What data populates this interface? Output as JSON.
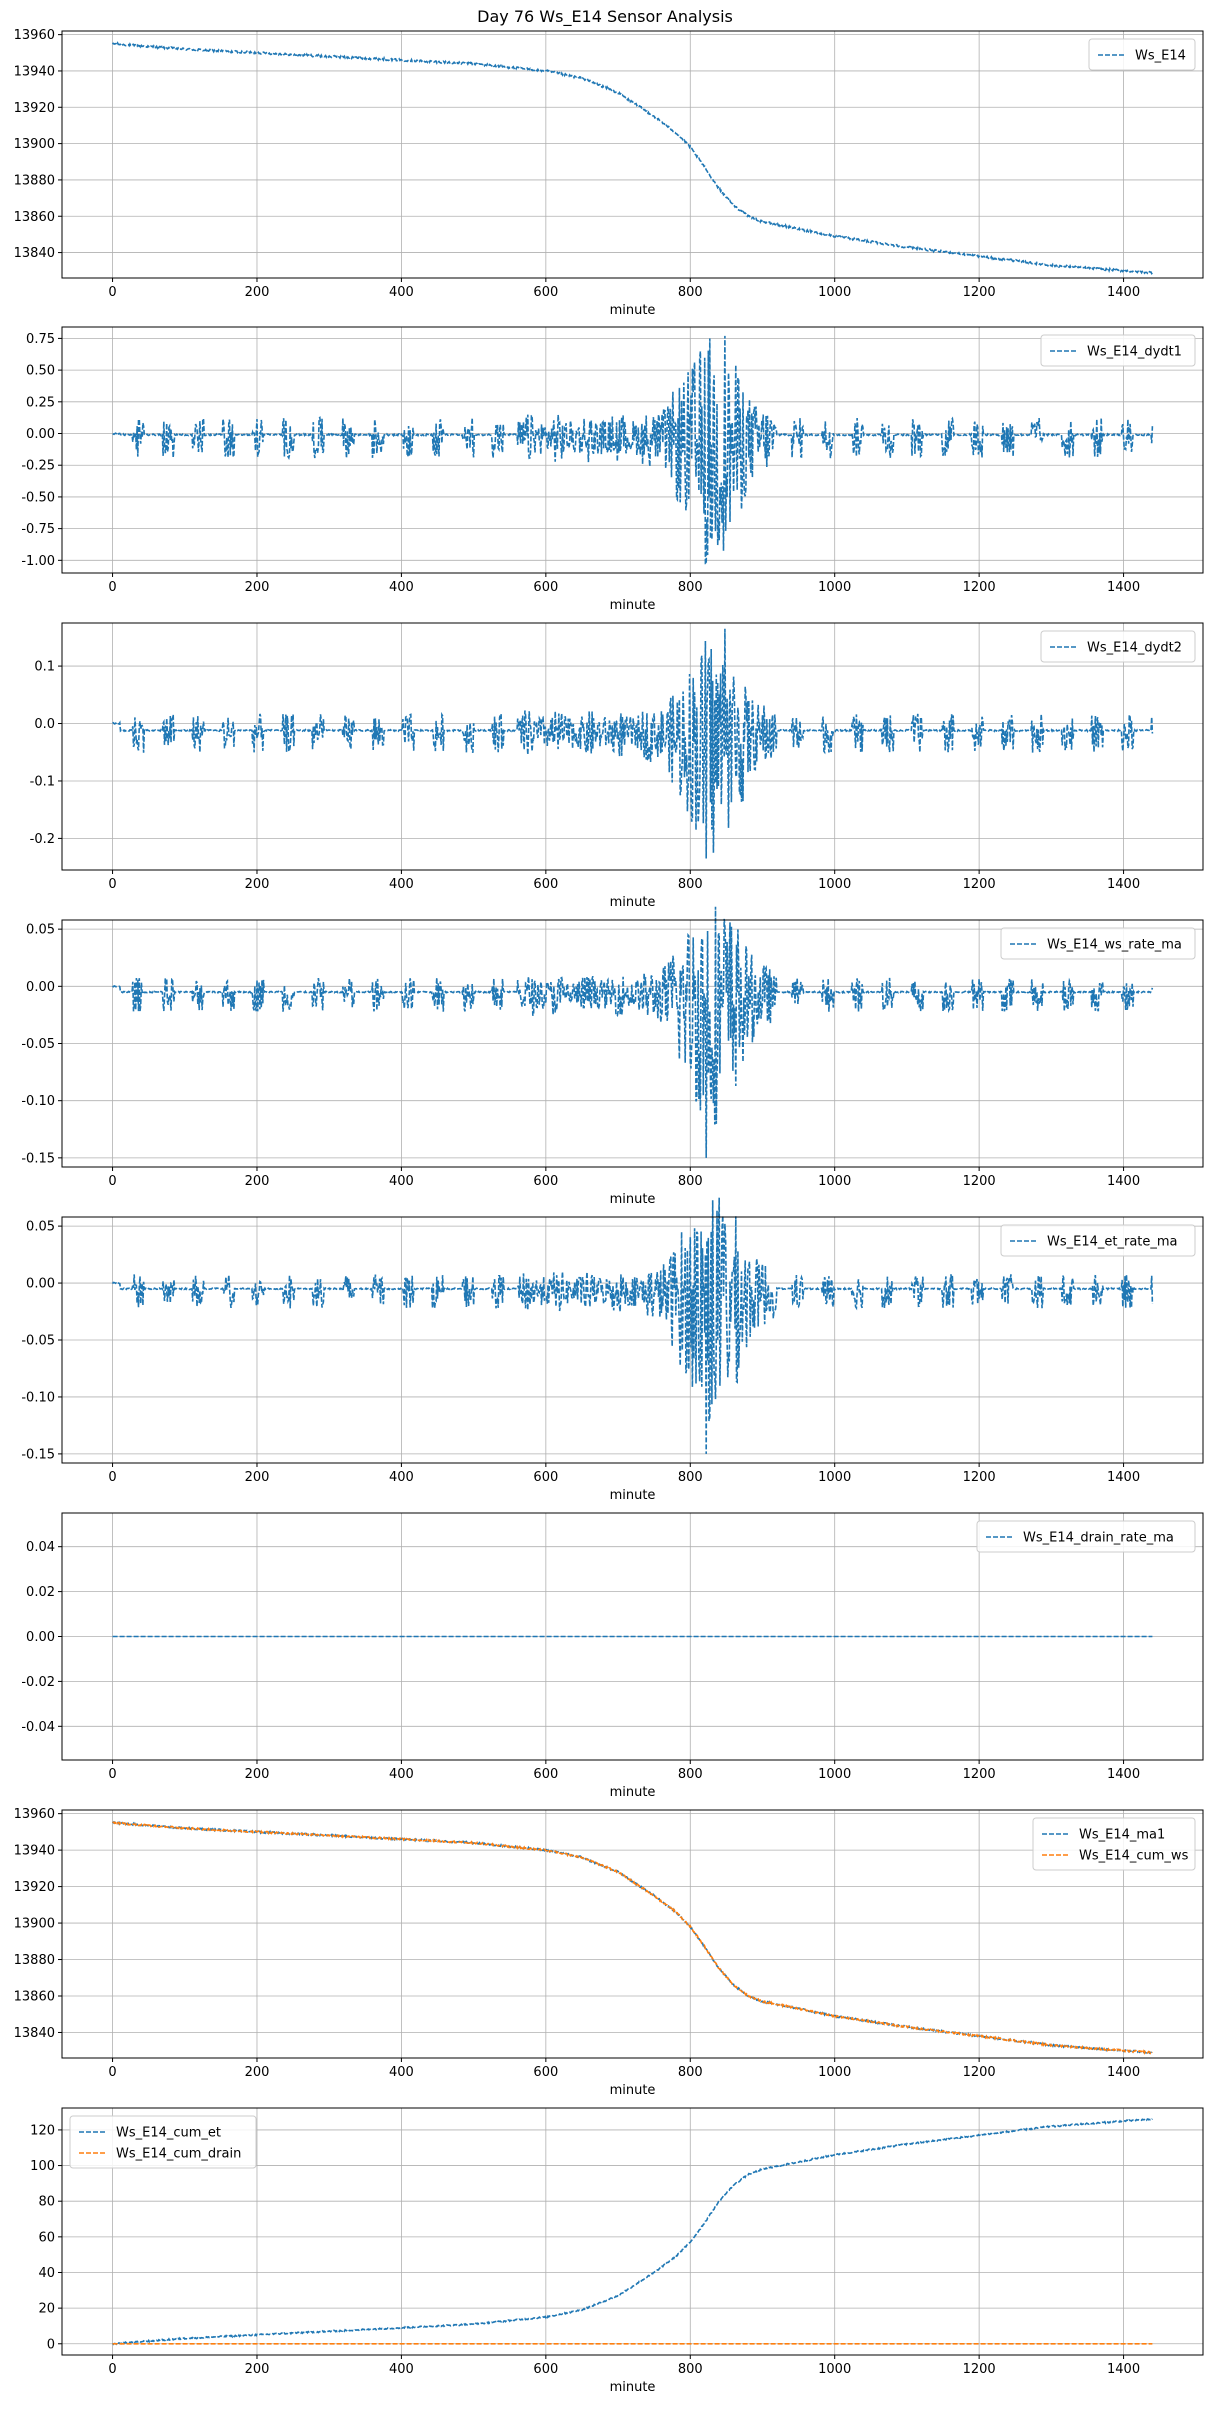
{
  "figure": {
    "title": "Day 76 Ws_E14 Sensor Analysis"
  },
  "colors": {
    "blue": "#1f77b4",
    "orange": "#ff7f0e",
    "grid": "#b0b0b0",
    "axis": "#000000"
  },
  "chart_data": [
    {
      "type": "line",
      "id": "ws",
      "title": "",
      "xlabel": "minute",
      "ylabel": "",
      "xlim": [
        -70,
        1510
      ],
      "ylim": [
        13826,
        13962
      ],
      "xticks": [
        0,
        200,
        400,
        600,
        800,
        1000,
        1200,
        1400
      ],
      "yticks": [
        13840,
        13860,
        13880,
        13900,
        13920,
        13940,
        13960
      ],
      "ytick_labels": [
        "13840",
        "13860",
        "13880",
        "13900",
        "13920",
        "13940",
        "13960"
      ],
      "legend": "upper right",
      "grid": true,
      "series": [
        {
          "name": "Ws_E14",
          "color": "blue",
          "style": "dashed",
          "kind": "smooth",
          "x": [
            0,
            100,
            200,
            300,
            400,
            500,
            600,
            650,
            700,
            750,
            780,
            800,
            820,
            840,
            860,
            880,
            900,
            950,
            1000,
            1100,
            1200,
            1300,
            1400,
            1440
          ],
          "y": [
            13955,
            13952,
            13950,
            13948,
            13946,
            13944,
            13940,
            13936,
            13928,
            13915,
            13906,
            13898,
            13887,
            13875,
            13866,
            13860,
            13857,
            13853,
            13849,
            13843,
            13838,
            13833,
            13830,
            13829
          ],
          "noise": 0.6
        }
      ]
    },
    {
      "type": "line",
      "id": "dydt1",
      "title": "",
      "xlabel": "minute",
      "ylabel": "",
      "xlim": [
        -70,
        1510
      ],
      "ylim": [
        -1.1,
        0.84
      ],
      "xticks": [
        0,
        200,
        400,
        600,
        800,
        1000,
        1200,
        1400
      ],
      "yticks": [
        -1.0,
        -0.75,
        -0.5,
        -0.25,
        0.0,
        0.25,
        0.5,
        0.75
      ],
      "ytick_labels": [
        "-1.00",
        "-0.75",
        "-0.50",
        "-0.25",
        "0.00",
        "0.25",
        "0.50",
        "0.75"
      ],
      "legend": "upper right",
      "grid": true,
      "series": [
        {
          "name": "Ws_E14_dydt1",
          "color": "blue",
          "style": "dashed",
          "kind": "osc",
          "burst_start": 28,
          "burst_period": 41.5,
          "burst_width": 16,
          "base_amp": 0.16,
          "base_bias": -0.01,
          "peak_amp": 0.75,
          "peak_center": 830,
          "peak_width": 48,
          "min_value": -1.03,
          "max_value": 0.77
        }
      ]
    },
    {
      "type": "line",
      "id": "dydt2",
      "title": "",
      "xlabel": "minute",
      "ylabel": "",
      "xlim": [
        -70,
        1510
      ],
      "ylim": [
        -0.255,
        0.175
      ],
      "xticks": [
        0,
        200,
        400,
        600,
        800,
        1000,
        1200,
        1400
      ],
      "yticks": [
        -0.2,
        -0.1,
        0.0,
        0.1
      ],
      "ytick_labels": [
        "-0.2",
        "-0.1",
        "0.0",
        "0.1"
      ],
      "legend": "upper right",
      "grid": true,
      "series": [
        {
          "name": "Ws_E14_dydt2",
          "color": "blue",
          "style": "dashed",
          "kind": "osc",
          "burst_start": 28,
          "burst_period": 41.5,
          "burst_width": 16,
          "base_amp": 0.034,
          "base_bias": -0.012,
          "peak_amp": 0.16,
          "peak_center": 830,
          "peak_width": 48,
          "min_value": -0.235,
          "max_value": 0.165
        }
      ]
    },
    {
      "type": "line",
      "id": "ws_rate",
      "title": "",
      "xlabel": "minute",
      "ylabel": "",
      "xlim": [
        -70,
        1510
      ],
      "ylim": [
        -0.158,
        0.058
      ],
      "xticks": [
        0,
        200,
        400,
        600,
        800,
        1000,
        1200,
        1400
      ],
      "yticks": [
        -0.15,
        -0.1,
        -0.05,
        0.0,
        0.05
      ],
      "ytick_labels": [
        "-0.15",
        "-0.10",
        "-0.05",
        "0.00",
        "0.05"
      ],
      "legend": "upper right",
      "grid": true,
      "series": [
        {
          "name": "Ws_E14_ws_rate_ma",
          "color": "blue",
          "style": "dashed",
          "kind": "osc",
          "burst_start": 28,
          "burst_period": 41.5,
          "burst_width": 16,
          "base_amp": 0.015,
          "base_bias": -0.005,
          "peak_amp": 0.09,
          "peak_center": 830,
          "peak_width": 50,
          "min_value": -0.15,
          "max_value": 0.052
        }
      ]
    },
    {
      "type": "line",
      "id": "et_rate",
      "title": "",
      "xlabel": "minute",
      "ylabel": "",
      "xlim": [
        -70,
        1510
      ],
      "ylim": [
        -0.158,
        0.058
      ],
      "xticks": [
        0,
        200,
        400,
        600,
        800,
        1000,
        1200,
        1400
      ],
      "yticks": [
        -0.15,
        -0.1,
        -0.05,
        0.0,
        0.05
      ],
      "ytick_labels": [
        "-0.15",
        "-0.10",
        "-0.05",
        "0.00",
        "0.05"
      ],
      "legend": "upper right",
      "grid": true,
      "series": [
        {
          "name": "Ws_E14_et_rate_ma",
          "color": "blue",
          "style": "dashed",
          "kind": "osc",
          "burst_start": 28,
          "burst_period": 41.5,
          "burst_width": 16,
          "base_amp": 0.015,
          "base_bias": -0.005,
          "peak_amp": 0.09,
          "peak_center": 830,
          "peak_width": 50,
          "min_value": -0.15,
          "max_value": 0.052
        }
      ]
    },
    {
      "type": "line",
      "id": "drain_rate",
      "title": "",
      "xlabel": "minute",
      "ylabel": "",
      "xlim": [
        -70,
        1510
      ],
      "ylim": [
        -0.055,
        0.055
      ],
      "xticks": [
        0,
        200,
        400,
        600,
        800,
        1000,
        1200,
        1400
      ],
      "yticks": [
        -0.04,
        -0.02,
        0.0,
        0.02,
        0.04
      ],
      "ytick_labels": [
        "-0.04",
        "-0.02",
        "0.00",
        "0.02",
        "0.04"
      ],
      "legend": "upper right",
      "grid": true,
      "series": [
        {
          "name": "Ws_E14_drain_rate_ma",
          "color": "blue",
          "style": "dashed",
          "kind": "smooth",
          "x": [
            0,
            1440
          ],
          "y": [
            0,
            0
          ],
          "noise": 0
        }
      ]
    },
    {
      "type": "line",
      "id": "ma1_cumws",
      "title": "",
      "xlabel": "minute",
      "ylabel": "",
      "xlim": [
        -70,
        1510
      ],
      "ylim": [
        13826,
        13962
      ],
      "xticks": [
        0,
        200,
        400,
        600,
        800,
        1000,
        1200,
        1400
      ],
      "yticks": [
        13840,
        13860,
        13880,
        13900,
        13920,
        13940,
        13960
      ],
      "ytick_labels": [
        "13840",
        "13860",
        "13880",
        "13900",
        "13920",
        "13940",
        "13960"
      ],
      "legend": "upper right",
      "grid": true,
      "series": [
        {
          "name": "Ws_E14_ma1",
          "color": "blue",
          "style": "dashed",
          "kind": "smooth",
          "x": [
            0,
            100,
            200,
            300,
            400,
            500,
            600,
            650,
            700,
            750,
            780,
            800,
            820,
            840,
            860,
            880,
            900,
            950,
            1000,
            1100,
            1200,
            1300,
            1400,
            1440
          ],
          "y": [
            13955,
            13952,
            13950,
            13948,
            13946,
            13944,
            13940,
            13936,
            13928,
            13915,
            13906,
            13898,
            13887,
            13875,
            13866,
            13860,
            13857,
            13853,
            13849,
            13843,
            13838,
            13833,
            13830,
            13829
          ],
          "noise": 0.5
        },
        {
          "name": "Ws_E14_cum_ws",
          "color": "orange",
          "style": "dashed",
          "kind": "smooth",
          "x": [
            0,
            100,
            200,
            300,
            400,
            500,
            600,
            650,
            700,
            750,
            780,
            800,
            820,
            840,
            860,
            880,
            900,
            950,
            1000,
            1100,
            1200,
            1300,
            1400,
            1440
          ],
          "y": [
            13955,
            13952,
            13950,
            13948,
            13946,
            13944,
            13940,
            13936,
            13928,
            13915,
            13906,
            13898,
            13887,
            13875,
            13866,
            13860,
            13857,
            13853,
            13849,
            13843,
            13838,
            13833,
            13830,
            13829
          ],
          "noise": 0.5
        }
      ]
    },
    {
      "type": "line",
      "id": "cum",
      "title": "",
      "xlabel": "minute",
      "ylabel": "",
      "xlim": [
        -70,
        1510
      ],
      "ylim": [
        -6.3,
        132.3
      ],
      "xticks": [
        0,
        200,
        400,
        600,
        800,
        1000,
        1200,
        1400
      ],
      "yticks": [
        0,
        20,
        40,
        60,
        80,
        100,
        120
      ],
      "ytick_labels": [
        "0",
        "20",
        "40",
        "60",
        "80",
        "100",
        "120"
      ],
      "legend": "upper left",
      "grid": true,
      "series": [
        {
          "name": "Ws_E14_cum_et",
          "color": "blue",
          "style": "dashed",
          "kind": "smooth",
          "x": [
            0,
            100,
            200,
            300,
            400,
            500,
            600,
            650,
            700,
            750,
            780,
            800,
            820,
            840,
            860,
            880,
            900,
            950,
            1000,
            1100,
            1200,
            1300,
            1400,
            1440
          ],
          "y": [
            0,
            3,
            5,
            7,
            9,
            11,
            15,
            19,
            27,
            40,
            49,
            57,
            68,
            80,
            89,
            95,
            98,
            102,
            106,
            112,
            117,
            122,
            125,
            126
          ],
          "noise": 0.4
        },
        {
          "name": "Ws_E14_cum_drain",
          "color": "orange",
          "style": "dashed",
          "kind": "smooth",
          "x": [
            0,
            1440
          ],
          "y": [
            0,
            0
          ],
          "noise": 0
        }
      ]
    }
  ]
}
